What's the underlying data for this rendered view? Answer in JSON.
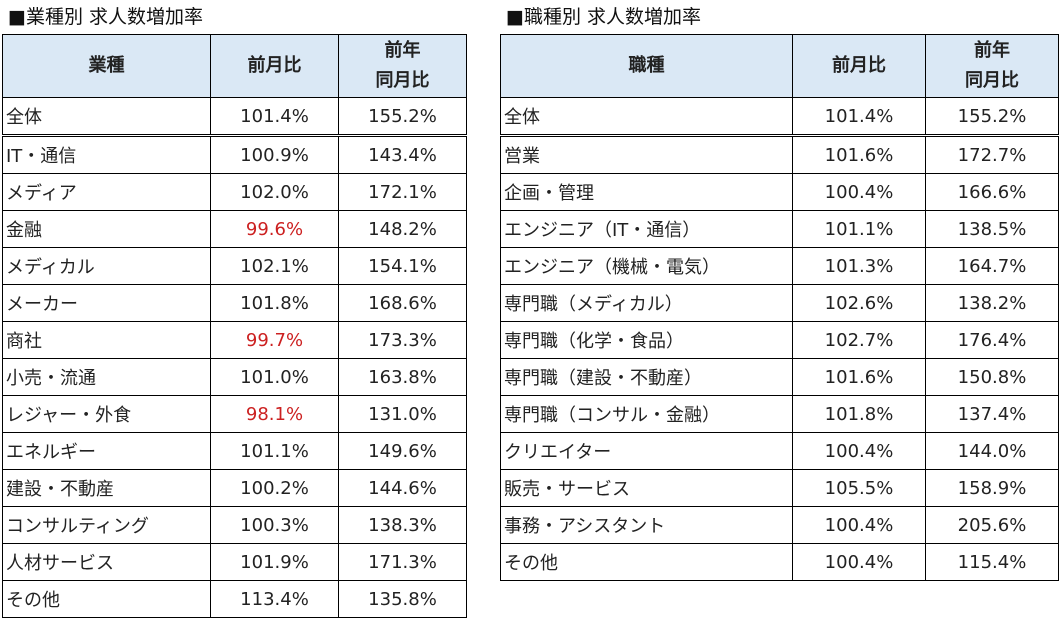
{
  "industry": {
    "title": "■業種別 求人数増加率",
    "header": {
      "col1": "業種",
      "col2": "前月比",
      "col3_line1": "前年",
      "col3_line2": "同月比"
    },
    "rows": [
      {
        "label": "全体",
        "mom": "101.4%",
        "yoy": "155.2%"
      },
      {
        "label": "IT・通信",
        "mom": "100.9%",
        "yoy": "143.4%"
      },
      {
        "label": "メディア",
        "mom": "102.0%",
        "yoy": "172.1%"
      },
      {
        "label": "金融",
        "mom": "99.6%",
        "yoy": "148.2%"
      },
      {
        "label": "メディカル",
        "mom": "102.1%",
        "yoy": "154.1%"
      },
      {
        "label": "メーカー",
        "mom": "101.8%",
        "yoy": "168.6%"
      },
      {
        "label": "商社",
        "mom": "99.7%",
        "yoy": "173.3%"
      },
      {
        "label": "小売・流通",
        "mom": "101.0%",
        "yoy": "163.8%"
      },
      {
        "label": "レジャー・外食",
        "mom": "98.1%",
        "yoy": "131.0%"
      },
      {
        "label": "エネルギー",
        "mom": "101.1%",
        "yoy": "149.6%"
      },
      {
        "label": "建設・不動産",
        "mom": "100.2%",
        "yoy": "144.6%"
      },
      {
        "label": "コンサルティング",
        "mom": "100.3%",
        "yoy": "138.3%"
      },
      {
        "label": "人材サービス",
        "mom": "101.9%",
        "yoy": "171.3%"
      },
      {
        "label": "その他",
        "mom": "113.4%",
        "yoy": "135.8%"
      }
    ]
  },
  "job": {
    "title": "■職種別 求人数増加率",
    "header": {
      "col1": "職種",
      "col2": "前月比",
      "col3_line1": "前年",
      "col3_line2": "同月比"
    },
    "rows": [
      {
        "label": "全体",
        "mom": "101.4%",
        "yoy": "155.2%"
      },
      {
        "label": "営業",
        "mom": "101.6%",
        "yoy": "172.7%"
      },
      {
        "label": "企画・管理",
        "mom": "100.4%",
        "yoy": "166.6%"
      },
      {
        "label": "エンジニア（IT・通信）",
        "mom": "101.1%",
        "yoy": "138.5%"
      },
      {
        "label": "エンジニア（機械・電気）",
        "mom": "101.3%",
        "yoy": "164.7%"
      },
      {
        "label": "専門職（メディカル）",
        "mom": "102.6%",
        "yoy": "138.2%"
      },
      {
        "label": "専門職（化学・食品）",
        "mom": "102.7%",
        "yoy": "176.4%"
      },
      {
        "label": "専門職（建設・不動産）",
        "mom": "101.6%",
        "yoy": "150.8%"
      },
      {
        "label": "専門職（コンサル・金融）",
        "mom": "101.8%",
        "yoy": "137.4%"
      },
      {
        "label": "クリエイター",
        "mom": "100.4%",
        "yoy": "144.0%"
      },
      {
        "label": "販売・サービス",
        "mom": "105.5%",
        "yoy": "158.9%"
      },
      {
        "label": "事務・アシスタント",
        "mom": "100.4%",
        "yoy": "205.6%"
      },
      {
        "label": "その他",
        "mom": "100.4%",
        "yoy": "115.4%"
      }
    ]
  },
  "colors": {
    "header_bg": "#dae8f5",
    "below_100": "#cc2020",
    "border": "#000000"
  }
}
